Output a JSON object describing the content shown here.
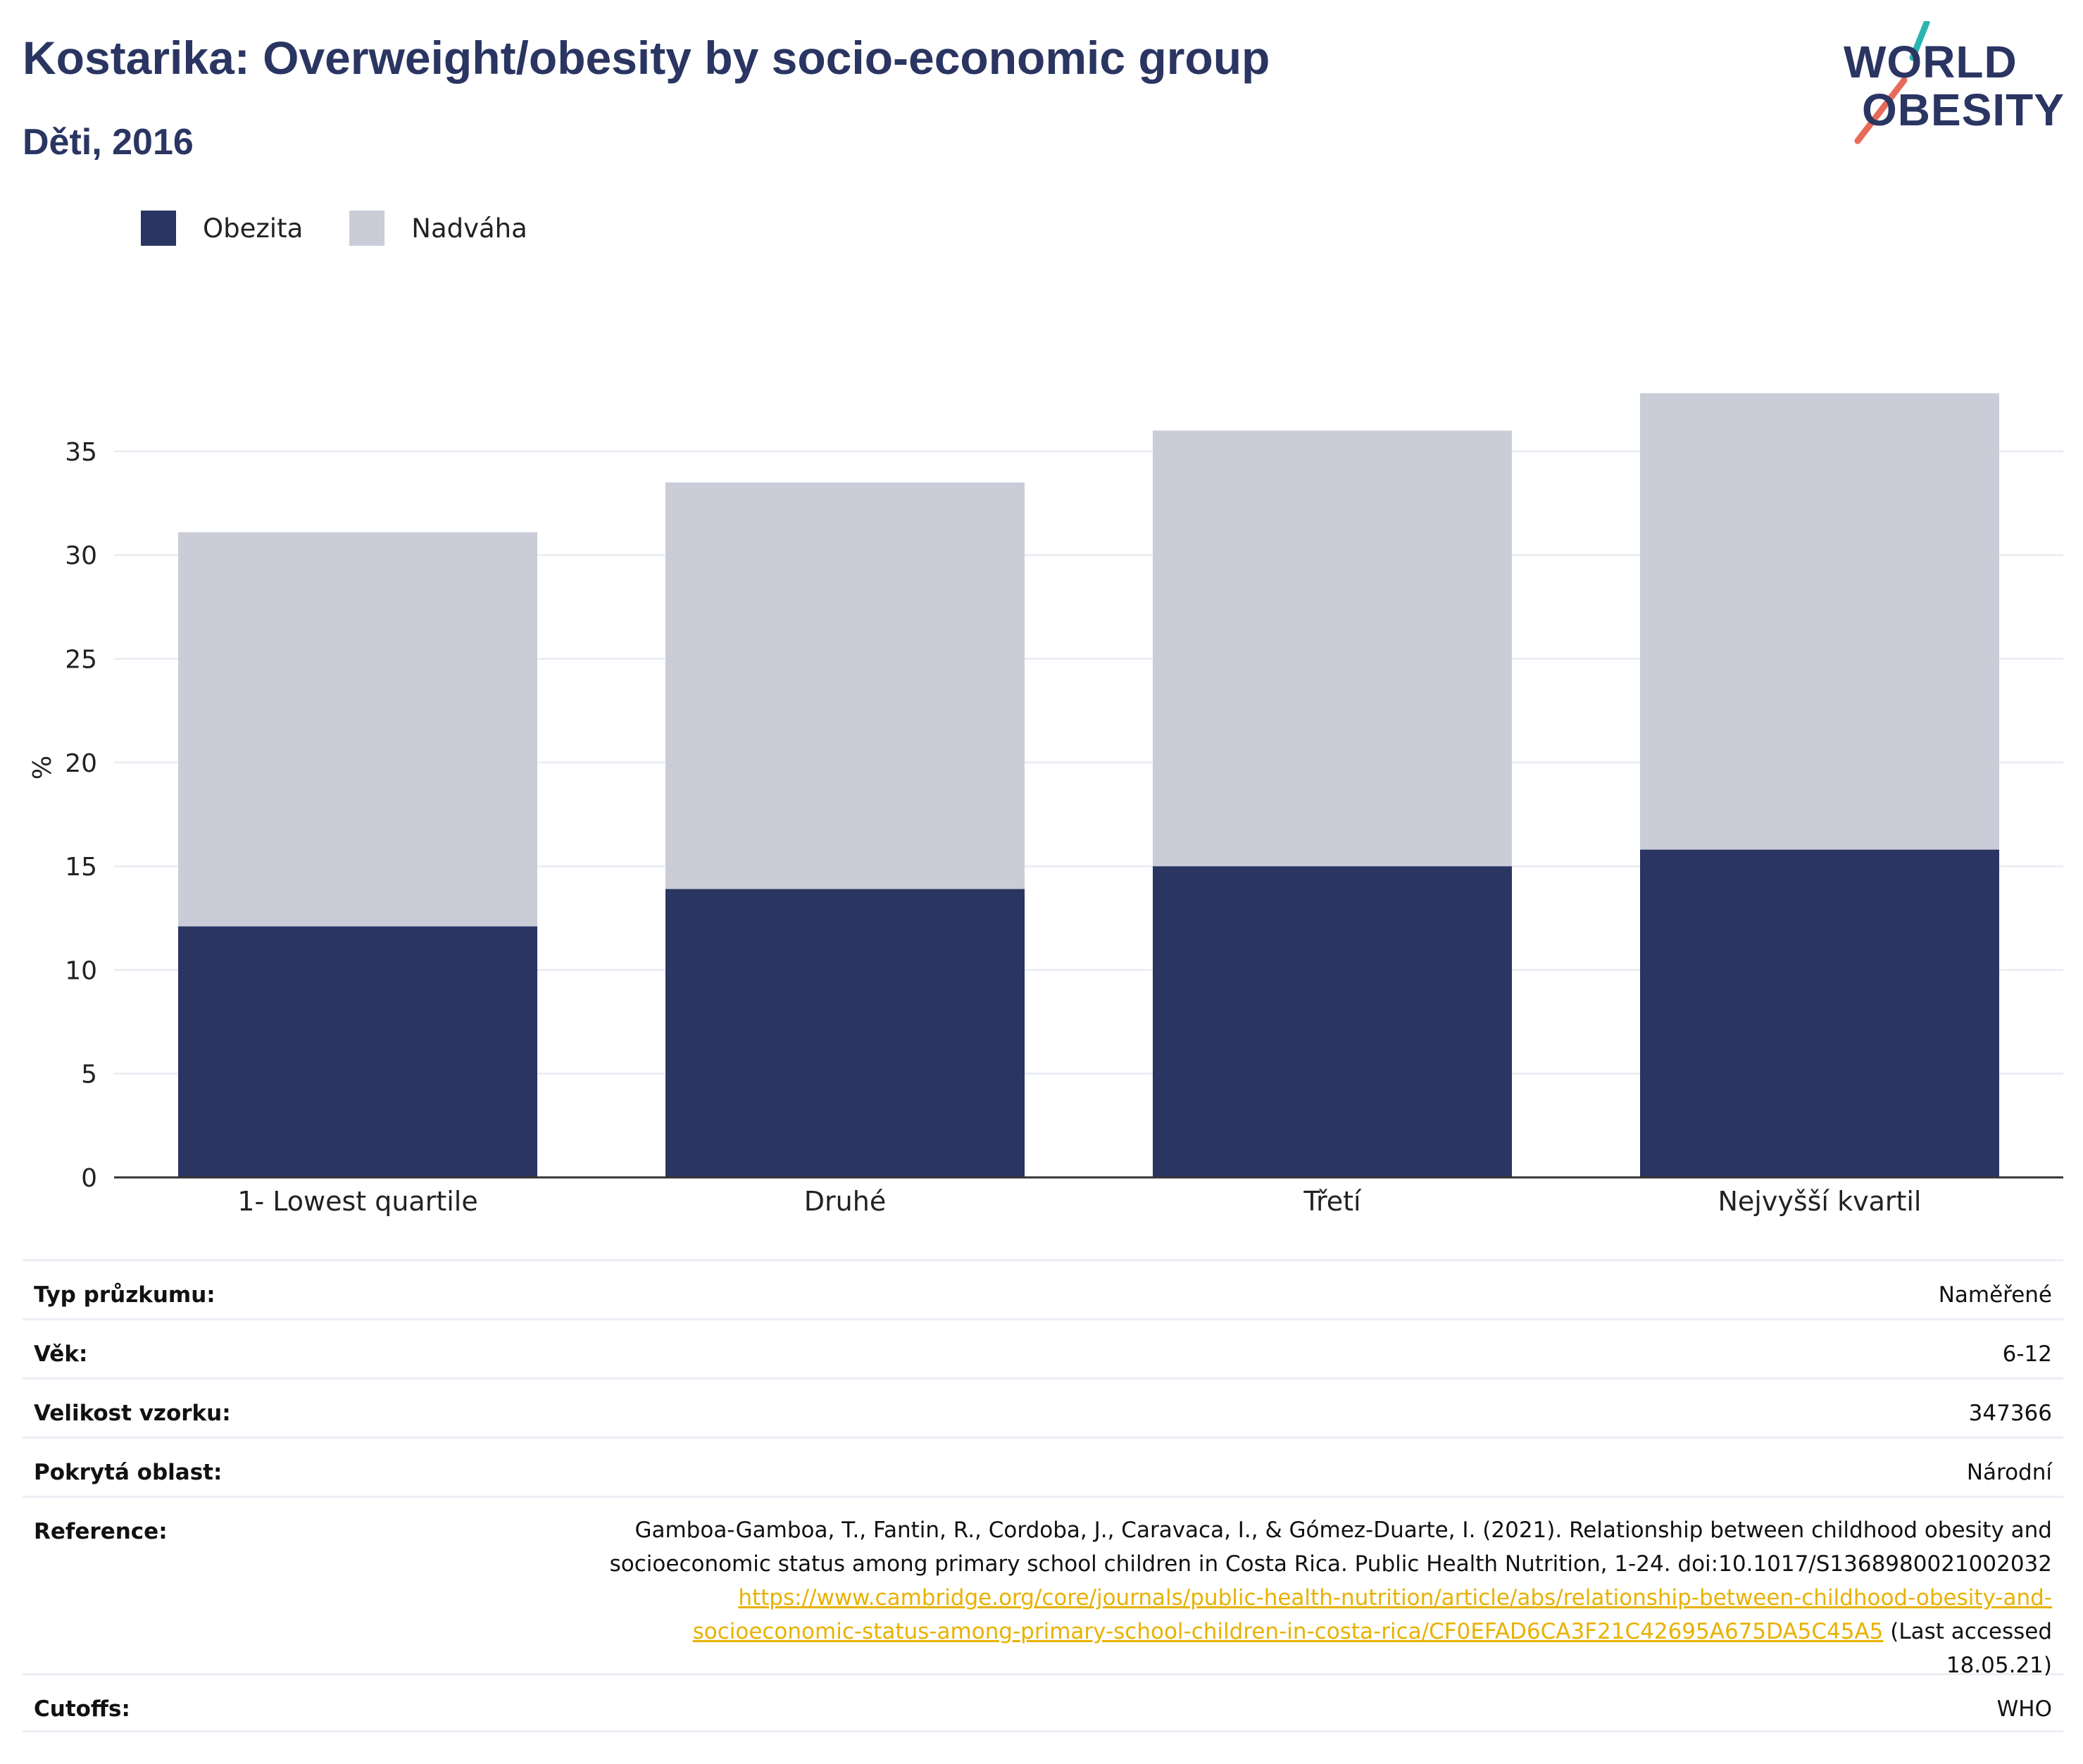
{
  "header": {
    "title": "Kostarika: Overweight/obesity by socio-economic group",
    "subtitle": "Děti, 2016"
  },
  "logo": {
    "line1": "WORLD",
    "line2": "OBESITY",
    "colors": {
      "text": "#2a3562",
      "slash_top": "#2bb5b0",
      "slash_bottom": "#e86a5a"
    }
  },
  "colors": {
    "obezita": "#2a3562",
    "nadvaha": "#cacdd8",
    "grid": "#eceef4",
    "axis": "#333333",
    "link": "#e8b100"
  },
  "chart_data": {
    "type": "bar",
    "stacked": true,
    "categories": [
      "1- Lowest quartile",
      "Druhé",
      "Třetí",
      "Nejvyšší kvartil"
    ],
    "series": [
      {
        "name": "Obezita",
        "values": [
          12.1,
          13.9,
          15.0,
          15.8
        ]
      },
      {
        "name": "Nadváha",
        "values": [
          19.0,
          19.6,
          21.0,
          22.0
        ]
      }
    ],
    "ylabel": "%",
    "xlabel": "",
    "ylim": [
      0,
      40
    ],
    "yticks": [
      0,
      5,
      10,
      15,
      20,
      25,
      30,
      35
    ],
    "grid": true,
    "legend_position": "top-left"
  },
  "info": {
    "rows": [
      {
        "label": "Typ průzkumu:",
        "value": "Naměřené"
      },
      {
        "label": "Věk:",
        "value": "6-12"
      },
      {
        "label": "Velikost vzorku:",
        "value": "347366"
      },
      {
        "label": "Pokrytá oblast:",
        "value": "Národní"
      }
    ],
    "reference": {
      "label": "Reference:",
      "line1": "Gamboa-Gamboa, T., Fantin, R., Cordoba, J., Caravaca, I., & Gómez-Duarte, I. (2021). Relationship between childhood obesity and",
      "line2": "socioeconomic status among primary school children in Costa Rica. Public Health Nutrition, 1-24. doi:10.1017/S1368980021002032",
      "link_line1": "https://www.cambridge.org/core/journals/public-health-nutrition/article/abs/relationship-between-childhood-obesity-and-",
      "link_line2": "socioeconomic-status-among-primary-school-children-in-costa-rica/CF0EFAD6CA3F21C42695A675DA5C45A5",
      "after_link": " (Last accessed",
      "accessed": "18.05.21)"
    },
    "cutoffs": {
      "label": "Cutoffs:",
      "value": "WHO"
    }
  }
}
